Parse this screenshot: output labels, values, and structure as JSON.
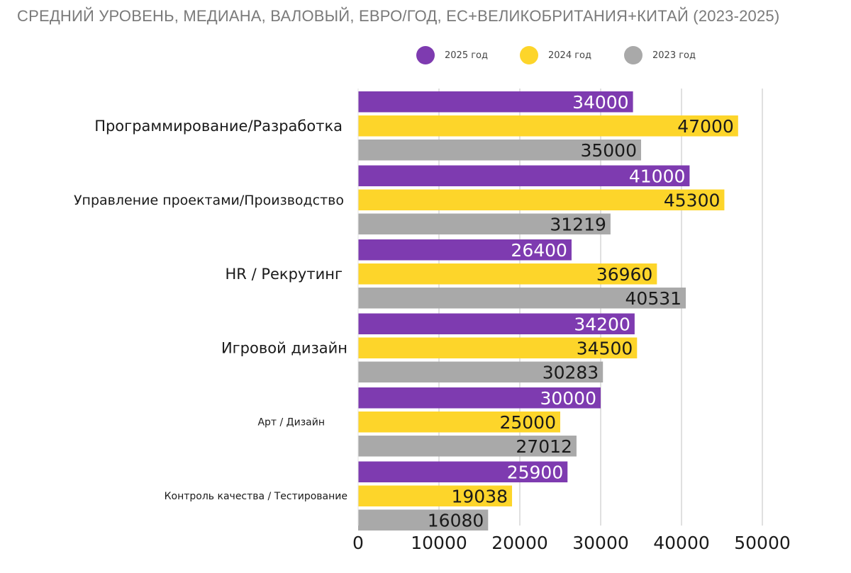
{
  "chart_data": {
    "type": "bar",
    "orientation": "horizontal",
    "title": "СРЕДНИЙ УРОВЕНЬ, МЕДИАНА, ВАЛОВЫЙ, ЕВРО/ГОД, ЕС+ВЕЛИКОБРИТАНИЯ+КИТАЙ (2023-2025)",
    "categories": [
      "Программирование/Разработка",
      "Управление проектами/Производство",
      "HR / Рекрутинг",
      "Игровой дизайн",
      "Арт / Дизайн",
      "Контроль качества / Тестирование"
    ],
    "series": [
      {
        "name": "2025 год",
        "color": "#7e3bb0",
        "label_color": "#ffffff",
        "values": [
          34000,
          41000,
          26400,
          34200,
          30000,
          25900
        ]
      },
      {
        "name": "2024 год",
        "color": "#fdd52a",
        "label_color": "#1a1a1a",
        "values": [
          47000,
          45300,
          36960,
          34500,
          25000,
          19038
        ]
      },
      {
        "name": "2023 год",
        "color": "#a9a9a9",
        "label_color": "#1a1a1a",
        "values": [
          35000,
          31219,
          40531,
          30283,
          27012,
          16080
        ]
      }
    ],
    "xlim": [
      0,
      50000
    ],
    "x_ticks": [
      0,
      10000,
      20000,
      30000,
      40000,
      50000
    ],
    "grid": true,
    "legend_position": "top"
  }
}
